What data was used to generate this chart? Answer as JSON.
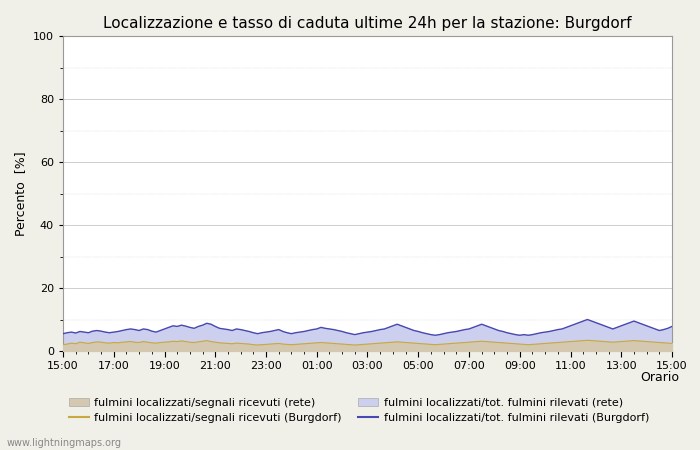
{
  "title": "Localizzazione e tasso di caduta ultime 24h per la stazione: Burgdorf",
  "ylabel": "Percento  [%]",
  "xlabel": "Orario",
  "ylim": [
    0,
    100
  ],
  "yticks": [
    0,
    20,
    40,
    60,
    80,
    100
  ],
  "yticks_minor": [
    10,
    30,
    50,
    70,
    90
  ],
  "x_labels": [
    "15:00",
    "17:00",
    "19:00",
    "21:00",
    "23:00",
    "01:00",
    "03:00",
    "05:00",
    "07:00",
    "09:00",
    "11:00",
    "13:00",
    "15:00"
  ],
  "watermark": "www.lightningmaps.org",
  "fill_rete_color": "#d4c8b0",
  "fill_burgdorf_color": "#ccd0ee",
  "line_rete_color": "#c8a840",
  "line_burgdorf_color": "#4848b0",
  "background_color": "#f0f0e8",
  "plot_bg_color": "#ffffff",
  "grid_color": "#bbbbbb",
  "title_fontsize": 11,
  "label_fontsize": 9,
  "tick_fontsize": 8,
  "legend_fontsize": 8,
  "n_points": 145,
  "rete_area": [
    2.0,
    2.2,
    2.5,
    2.3,
    2.8,
    2.6,
    2.4,
    2.7,
    2.9,
    2.8,
    2.6,
    2.5,
    2.7,
    2.6,
    2.8,
    2.9,
    3.0,
    2.8,
    2.7,
    3.0,
    2.8,
    2.6,
    2.5,
    2.7,
    2.8,
    2.9,
    3.1,
    3.0,
    3.2,
    3.0,
    2.8,
    2.7,
    2.9,
    3.1,
    3.3,
    3.0,
    2.8,
    2.6,
    2.5,
    2.4,
    2.3,
    2.5,
    2.4,
    2.3,
    2.2,
    2.0,
    1.9,
    2.0,
    2.1,
    2.2,
    2.3,
    2.4,
    2.2,
    2.1,
    2.0,
    2.1,
    2.2,
    2.3,
    2.4,
    2.5,
    2.6,
    2.7,
    2.6,
    2.5,
    2.4,
    2.3,
    2.2,
    2.1,
    2.0,
    1.9,
    2.0,
    2.1,
    2.2,
    2.3,
    2.4,
    2.5,
    2.6,
    2.7,
    2.8,
    2.9,
    2.8,
    2.7,
    2.6,
    2.5,
    2.4,
    2.3,
    2.2,
    2.1,
    2.0,
    2.1,
    2.2,
    2.3,
    2.4,
    2.5,
    2.6,
    2.7,
    2.8,
    2.9,
    3.0,
    3.1,
    3.0,
    2.9,
    2.8,
    2.7,
    2.6,
    2.5,
    2.4,
    2.3,
    2.2,
    2.1,
    2.0,
    2.1,
    2.2,
    2.3,
    2.4,
    2.5,
    2.6,
    2.7,
    2.8,
    2.9,
    3.0,
    3.1,
    3.2,
    3.3,
    3.4,
    3.3,
    3.2,
    3.1,
    3.0,
    2.9,
    2.8,
    2.9,
    3.0,
    3.1,
    3.2,
    3.3,
    3.2,
    3.1,
    3.0,
    2.9,
    2.8,
    2.7,
    2.6,
    2.5,
    2.4
  ],
  "burgdorf_area": [
    5.5,
    5.8,
    6.0,
    5.7,
    6.2,
    6.0,
    5.8,
    6.3,
    6.5,
    6.3,
    6.0,
    5.8,
    6.0,
    6.2,
    6.5,
    6.8,
    7.0,
    6.8,
    6.5,
    7.0,
    6.8,
    6.3,
    6.0,
    6.5,
    7.0,
    7.5,
    8.0,
    7.8,
    8.2,
    7.9,
    7.5,
    7.2,
    7.8,
    8.2,
    8.8,
    8.5,
    7.8,
    7.2,
    7.0,
    6.8,
    6.5,
    7.0,
    6.8,
    6.5,
    6.2,
    5.8,
    5.5,
    5.8,
    6.0,
    6.2,
    6.5,
    6.8,
    6.2,
    5.8,
    5.5,
    5.8,
    6.0,
    6.2,
    6.5,
    6.8,
    7.0,
    7.5,
    7.2,
    7.0,
    6.8,
    6.5,
    6.2,
    5.8,
    5.5,
    5.2,
    5.5,
    5.8,
    6.0,
    6.2,
    6.5,
    6.8,
    7.0,
    7.5,
    8.0,
    8.5,
    8.0,
    7.5,
    7.0,
    6.5,
    6.2,
    5.8,
    5.5,
    5.2,
    5.0,
    5.2,
    5.5,
    5.8,
    6.0,
    6.2,
    6.5,
    6.8,
    7.0,
    7.5,
    8.0,
    8.5,
    8.0,
    7.5,
    7.0,
    6.5,
    6.2,
    5.8,
    5.5,
    5.2,
    5.0,
    5.2,
    5.0,
    5.2,
    5.5,
    5.8,
    6.0,
    6.2,
    6.5,
    6.8,
    7.0,
    7.5,
    8.0,
    8.5,
    9.0,
    9.5,
    10.0,
    9.5,
    9.0,
    8.5,
    8.0,
    7.5,
    7.0,
    7.5,
    8.0,
    8.5,
    9.0,
    9.5,
    9.0,
    8.5,
    8.0,
    7.5,
    7.0,
    6.5,
    6.8,
    7.2,
    7.8
  ]
}
